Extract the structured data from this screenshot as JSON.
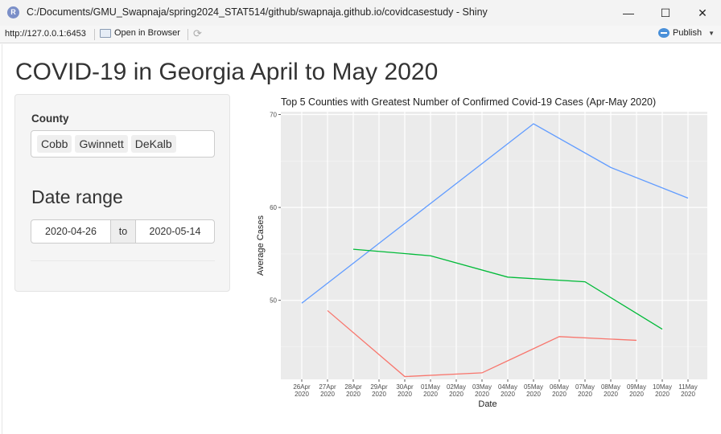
{
  "window": {
    "title": "C:/Documents/GMU_Swapnaja/spring2024_STAT514/github/swapnaja.github.io/covidcasestudy - Shiny",
    "app_icon": "R",
    "minimize": "—",
    "maximize": "☐",
    "close": "✕"
  },
  "toolbar": {
    "url": "http://127.0.0.1:6453",
    "open_in_browser": "Open in Browser",
    "publish": "Publish"
  },
  "page": {
    "title": "COVID-19 in Georgia April to May 2020"
  },
  "sidebar": {
    "county_label": "County",
    "counties": [
      "Cobb",
      "Gwinnett",
      "DeKalb"
    ],
    "date_range_label": "Date range",
    "date_start": "2020-04-26",
    "date_separator": "to",
    "date_end": "2020-05-14"
  },
  "chart_data": {
    "type": "line",
    "title": "Top 5 Counties with Greatest Number of Confirmed Covid-19 Cases (Apr-May 2020)",
    "xlabel": "Date",
    "ylabel": "Average Cases",
    "x_tick_labels": [
      [
        "26Apr",
        "2020"
      ],
      [
        "27Apr",
        "2020"
      ],
      [
        "28Apr",
        "2020"
      ],
      [
        "29Apr",
        "2020"
      ],
      [
        "30Apr",
        "2020"
      ],
      [
        "01May",
        "2020"
      ],
      [
        "02May",
        "2020"
      ],
      [
        "03May",
        "2020"
      ],
      [
        "04May",
        "2020"
      ],
      [
        "05May",
        "2020"
      ],
      [
        "06May",
        "2020"
      ],
      [
        "07May",
        "2020"
      ],
      [
        "08May",
        "2020"
      ],
      [
        "09May",
        "2020"
      ],
      [
        "10May",
        "2020"
      ],
      [
        "11May",
        "2020"
      ]
    ],
    "y_ticks": [
      50,
      60,
      70
    ],
    "ylim": [
      41.5,
      70.3
    ],
    "grid": true,
    "series": [
      {
        "color": "#619CFF",
        "points": [
          {
            "x": "2020-04-26",
            "y": 49.7
          },
          {
            "x": "2020-05-05",
            "y": 69.0
          },
          {
            "x": "2020-05-08",
            "y": 64.3
          },
          {
            "x": "2020-05-11",
            "y": 61.0
          }
        ]
      },
      {
        "color": "#00BA38",
        "points": [
          {
            "x": "2020-04-28",
            "y": 55.5
          },
          {
            "x": "2020-05-01",
            "y": 54.8
          },
          {
            "x": "2020-05-04",
            "y": 52.5
          },
          {
            "x": "2020-05-07",
            "y": 52.0
          },
          {
            "x": "2020-05-10",
            "y": 46.9
          }
        ]
      },
      {
        "color": "#F8766D",
        "points": [
          {
            "x": "2020-04-27",
            "y": 48.9
          },
          {
            "x": "2020-04-30",
            "y": 41.8
          },
          {
            "x": "2020-05-03",
            "y": 42.2
          },
          {
            "x": "2020-05-06",
            "y": 46.1
          },
          {
            "x": "2020-05-09",
            "y": 45.7
          }
        ]
      }
    ]
  }
}
